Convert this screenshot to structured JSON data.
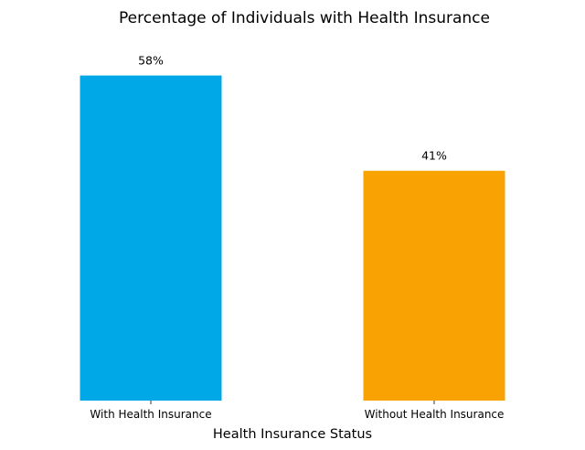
{
  "chart_data": {
    "type": "bar",
    "title": "Percentage of Individuals with Health Insurance",
    "xlabel": "Health Insurance Status",
    "ylabel": "",
    "categories": [
      "With Health Insurance",
      "Without Health Insurance"
    ],
    "values": [
      58,
      41
    ],
    "data_labels": [
      "58%",
      "41%"
    ],
    "colors": [
      "#00A8E8",
      "#F9A203"
    ],
    "ylim": [
      0,
      63.8
    ],
    "grid": false,
    "y_axis_visible": false
  }
}
